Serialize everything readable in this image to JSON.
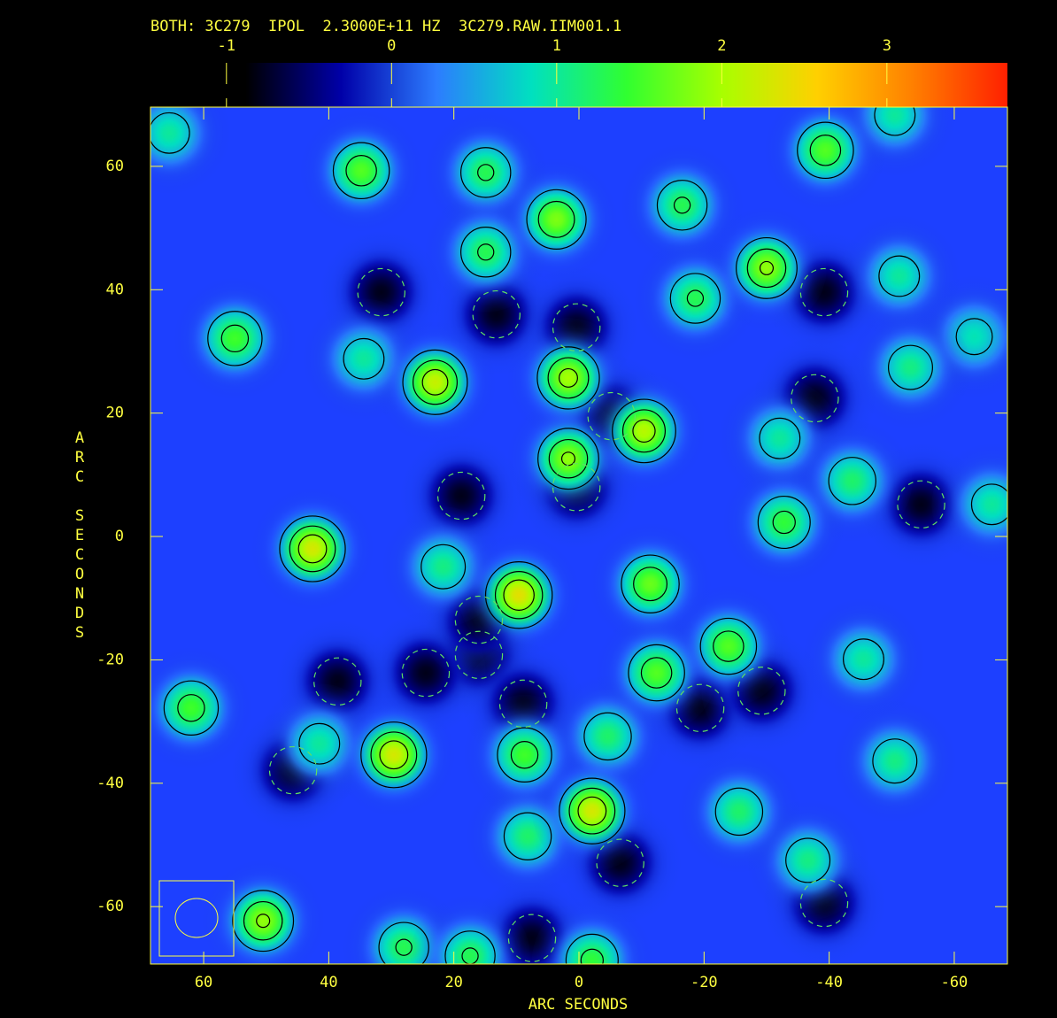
{
  "chart_data": {
    "type": "image",
    "title": "BOTH: 3C279  IPOL  2.3000E+11 HZ  3C279.RAW.IIM001.1",
    "xlabel": "ARC SECONDS",
    "ylabel": "ARC SECONDS",
    "xlim": [
      68.5,
      -68.5
    ],
    "ylim": [
      -69.3,
      69.6
    ],
    "xticks": [
      60,
      40,
      20,
      0,
      -20,
      -40,
      -60
    ],
    "yticks": [
      -60,
      -40,
      -20,
      0,
      20,
      40,
      60
    ],
    "clim": [
      -1.46,
      3.73
    ],
    "cticks": [
      -1,
      0,
      1,
      2,
      3
    ],
    "colormap": [
      "#000000",
      "#000000",
      "#0000a8",
      "#2c7cff",
      "#00e0c0",
      "#30ff30",
      "#a8ff00",
      "#ffd000",
      "#ff8000",
      "#ff2000"
    ],
    "background_color": "#1d40ff",
    "axis_color": "#ffff40",
    "contour_levels": [
      -0.4,
      0.6,
      1.2,
      1.8
    ],
    "sources": {
      "x": [
        34.8,
        14.9,
        3.6,
        -16.5,
        -39.4,
        -30.0,
        14.9,
        -18.6,
        55.0,
        23.0,
        1.7,
        -10.4,
        1.7,
        -32.1,
        -43.7,
        -32.8,
        42.6,
        9.6,
        21.7,
        -11.4,
        -23.9,
        -12.4,
        62.0,
        29.6,
        8.7,
        -4.6,
        -2.1,
        8.2,
        -25.6,
        -36.6,
        50.5,
        28.0,
        -51.2,
        -63.2,
        -53.0,
        -66.0,
        -45.5,
        -50.5,
        65.5,
        -50.5,
        41.5,
        34.4,
        -2.1,
        17.4,
        13.2,
        0.4,
        -5.2,
        18.8,
        0.4,
        16.0,
        8.9,
        -6.6,
        7.5,
        -19.4,
        -37.7,
        -54.7,
        31.6,
        -39.2,
        -29.2,
        24.5,
        38.6,
        -39.2,
        45.7,
        16.0
      ],
      "y": [
        59.3,
        59.0,
        51.4,
        53.7,
        62.6,
        43.5,
        46.1,
        38.6,
        32.1,
        25.0,
        25.7,
        17.1,
        12.6,
        15.9,
        9.0,
        2.3,
        -2.0,
        -9.5,
        -4.9,
        -7.7,
        -17.8,
        -22.1,
        -27.8,
        -35.4,
        -35.4,
        -32.4,
        -44.5,
        -48.6,
        -44.6,
        -52.5,
        -62.3,
        -66.6,
        42.2,
        32.4,
        27.4,
        5.2,
        -19.9,
        -36.4,
        65.4,
        68.3,
        -33.6,
        28.8,
        -68.7,
        -68.0,
        36.0,
        33.9,
        19.5,
        6.6,
        8.0,
        -19.2,
        -27.1,
        -52.9,
        -65.1,
        -27.8,
        22.4,
        5.2,
        39.6,
        39.6,
        -25.0,
        -22.1,
        -23.5,
        -59.4,
        -37.9,
        -13.5
      ],
      "values": [
        1.6,
        1.3,
        1.8,
        1.3,
        1.6,
        1.9,
        1.3,
        1.3,
        1.5,
        2.2,
        2.0,
        2.1,
        1.9,
        1.0,
        1.2,
        1.4,
        2.3,
        2.4,
        1.1,
        1.7,
        1.6,
        1.6,
        1.5,
        2.3,
        1.5,
        1.2,
        2.3,
        1.2,
        1.2,
        1.1,
        1.9,
        1.3,
        1.0,
        0.9,
        1.1,
        1.0,
        1.0,
        1.1,
        1.0,
        1.0,
        1.0,
        1.0,
        1.4,
        1.3,
        -0.8,
        -0.8,
        -0.8,
        -0.8,
        -0.8,
        -0.8,
        -0.8,
        -0.8,
        -0.8,
        -0.8,
        -0.8,
        -0.8,
        -0.8,
        -0.8,
        -0.8,
        -0.8,
        -0.8,
        -0.8,
        -0.8,
        -0.8
      ]
    }
  }
}
